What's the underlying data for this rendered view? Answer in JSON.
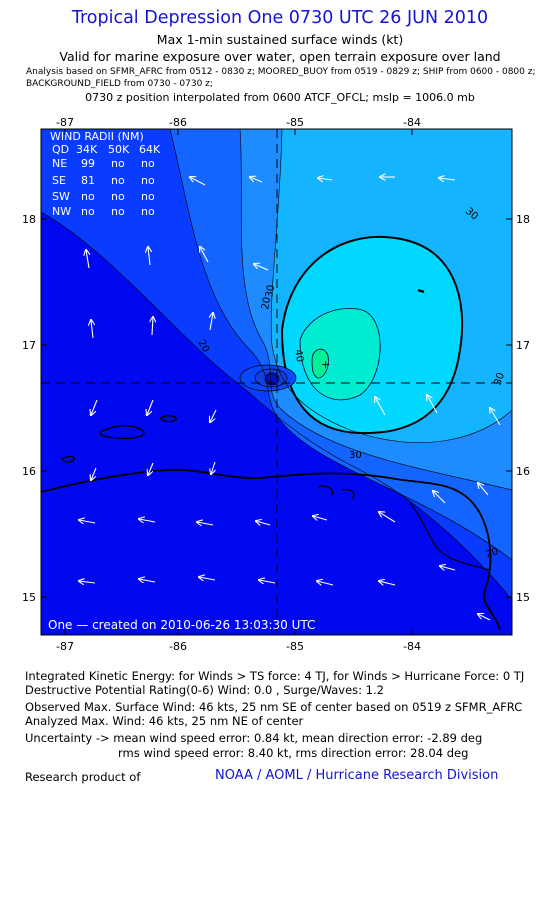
{
  "header": {
    "title": "Tropical Depression One 0730 UTC 26 JUN 2010",
    "subtitle1": "Max 1-min sustained surface winds (kt)",
    "subtitle2": "Valid for marine exposure over water, open terrain exposure over land",
    "analysis_line1": "Analysis based on   SFMR_AFRC from 0512 - 0830 z;  MOORED_BUOY from 0519 - 0829 z;  SHIP from 0600 - 0800 z;",
    "analysis_line2": "BACKGROUND_FIELD from 0730 - 0730 z;",
    "position_line": "0730 z position interpolated from 0600 ATCF_OFCL; mslp = 1006.0 mb"
  },
  "map": {
    "lon_ticks": [
      "-87",
      "-86",
      "-85",
      "-84"
    ],
    "lat_ticks": [
      "18",
      "17",
      "16",
      "15"
    ],
    "center": {
      "lon": -85.0,
      "lat": 16.7
    },
    "contour_labels": [
      "20",
      "20",
      "30",
      "30",
      "30",
      "30",
      "40",
      "20"
    ],
    "credit": "One  —  created on 2010-06-26  13:03:30 UTC",
    "colors": {
      "weak": "#0000ff",
      "mid": "#1e88ff",
      "strong": "#00d6ff",
      "max": "#00f0a0"
    }
  },
  "wind_radii": {
    "title": "WIND RADII (NM)",
    "header": [
      "QD",
      "34K",
      "50K",
      "64K"
    ],
    "rows": [
      [
        "NE",
        "99",
        "no",
        "no"
      ],
      [
        "SE",
        "81",
        "no",
        "no"
      ],
      [
        "SW",
        "no",
        "no",
        "no"
      ],
      [
        "NW",
        "no",
        "no",
        "no"
      ]
    ]
  },
  "footer": {
    "ike": "Integrated Kinetic Energy:  for Winds > TS force: 4 TJ,  for Winds > Hurricane Force: 0 TJ",
    "destructive": "Destructive Potential Rating(0-6)   Wind: 0.0 , Surge/Waves: 1.2",
    "observed": "Observed Max. Surface Wind: 46 kts, 25 nm SE of center based on 0519 z SFMR_AFRC",
    "analyzed": "Analyzed Max. Wind: 46 kts, 25 nm NE of center",
    "uncertainty1": "Uncertainty -> mean wind speed error: 0.84 kt,   mean direction error:  -2.89 deg",
    "uncertainty2": "rms wind speed error: 8.40 kt,   rms direction error: 28.04 deg",
    "research_label": "Research product of",
    "org": "NOAA / AOML / Hurricane Research Division"
  }
}
